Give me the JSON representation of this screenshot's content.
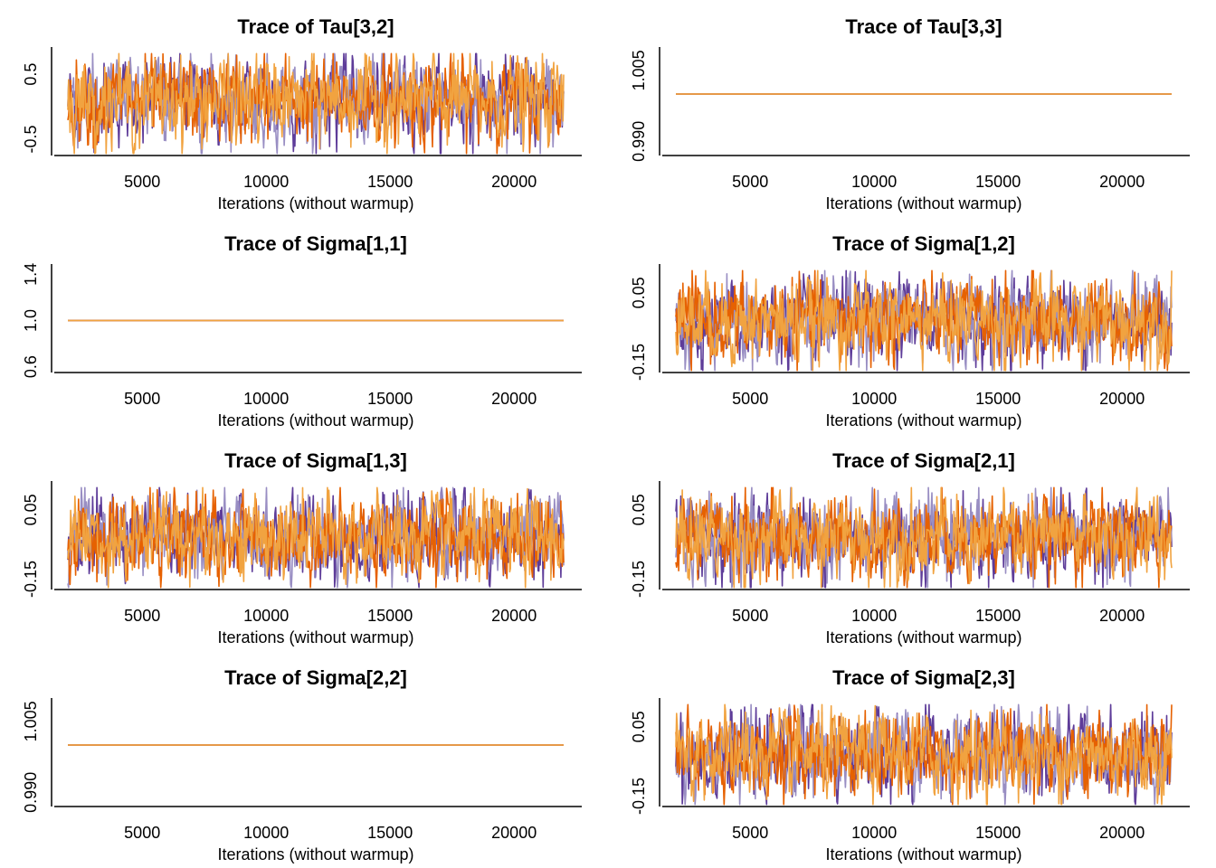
{
  "colors": {
    "chain_1": "#E66101",
    "chain_2": "#5E3C99",
    "chain_3": "#998EC3",
    "chain_4": "#F1A340"
  },
  "chart_data": [
    {
      "type": "line",
      "title": "Trace of  Tau[3,2]",
      "xlabel": "Iterations (without warmup)",
      "xlim": [
        2000,
        22000
      ],
      "xticks": [
        "5000",
        "10000",
        "15000",
        "20000"
      ],
      "ylim": [
        -0.75,
        0.85
      ],
      "yticks": [
        {
          "value": 0.5,
          "label": "0.5"
        },
        {
          "value": -0.5,
          "label": "-0.5"
        }
      ],
      "series_center": 0.1,
      "series_spread": 0.3,
      "constant": false
    },
    {
      "type": "line",
      "title": "Trace of  Tau[3,3]",
      "xlabel": "Iterations (without warmup)",
      "xlim": [
        2000,
        22000
      ],
      "xticks": [
        "5000",
        "10000",
        "15000",
        "20000"
      ],
      "ylim": [
        0.987,
        1.009
      ],
      "yticks": [
        {
          "value": 1.005,
          "label": "1.005"
        },
        {
          "value": 0.99,
          "label": "0.990"
        }
      ],
      "series_center": 1.0,
      "series_spread": 0,
      "constant": true
    },
    {
      "type": "line",
      "title": "Trace of  Sigma[1,1]",
      "xlabel": "Iterations (without warmup)",
      "xlim": [
        2000,
        22000
      ],
      "xticks": [
        "5000",
        "10000",
        "15000",
        "20000"
      ],
      "ylim": [
        0.55,
        1.45
      ],
      "yticks": [
        {
          "value": 1.4,
          "label": "1.4"
        },
        {
          "value": 1.0,
          "label": "1.0"
        },
        {
          "value": 0.6,
          "label": "0.6"
        }
      ],
      "series_center": 1.0,
      "series_spread": 0,
      "constant": true
    },
    {
      "type": "line",
      "title": "Trace of  Sigma[1,2]",
      "xlabel": "Iterations (without warmup)",
      "xlim": [
        2000,
        22000
      ],
      "xticks": [
        "5000",
        "10000",
        "15000",
        "20000"
      ],
      "ylim": [
        -0.18,
        0.12
      ],
      "yticks": [
        {
          "value": 0.05,
          "label": "0.05"
        },
        {
          "value": -0.15,
          "label": "-0.15"
        }
      ],
      "series_center": -0.03,
      "series_spread": 0.055,
      "constant": false
    },
    {
      "type": "line",
      "title": "Trace of  Sigma[1,3]",
      "xlabel": "Iterations (without warmup)",
      "xlim": [
        2000,
        22000
      ],
      "xticks": [
        "5000",
        "10000",
        "15000",
        "20000"
      ],
      "ylim": [
        -0.18,
        0.12
      ],
      "yticks": [
        {
          "value": 0.05,
          "label": "0.05"
        },
        {
          "value": -0.15,
          "label": "-0.15"
        }
      ],
      "series_center": -0.03,
      "series_spread": 0.055,
      "constant": false
    },
    {
      "type": "line",
      "title": "Trace of  Sigma[2,1]",
      "xlabel": "Iterations (without warmup)",
      "xlim": [
        2000,
        22000
      ],
      "xticks": [
        "5000",
        "10000",
        "15000",
        "20000"
      ],
      "ylim": [
        -0.18,
        0.12
      ],
      "yticks": [
        {
          "value": 0.05,
          "label": "0.05"
        },
        {
          "value": -0.15,
          "label": "-0.15"
        }
      ],
      "series_center": -0.03,
      "series_spread": 0.055,
      "constant": false
    },
    {
      "type": "line",
      "title": "Trace of  Sigma[2,2]",
      "xlabel": "Iterations (without warmup)",
      "xlim": [
        2000,
        22000
      ],
      "xticks": [
        "5000",
        "10000",
        "15000",
        "20000"
      ],
      "ylim": [
        0.987,
        1.009
      ],
      "yticks": [
        {
          "value": 1.005,
          "label": "1.005"
        },
        {
          "value": 0.99,
          "label": "0.990"
        }
      ],
      "series_center": 1.0,
      "series_spread": 0,
      "constant": true
    },
    {
      "type": "line",
      "title": "Trace of  Sigma[2,3]",
      "xlabel": "Iterations (without warmup)",
      "xlim": [
        2000,
        22000
      ],
      "xticks": [
        "5000",
        "10000",
        "15000",
        "20000"
      ],
      "ylim": [
        -0.18,
        0.12
      ],
      "yticks": [
        {
          "value": 0.05,
          "label": "0.05"
        },
        {
          "value": -0.15,
          "label": "-0.15"
        }
      ],
      "series_center": -0.03,
      "series_spread": 0.055,
      "constant": false
    }
  ]
}
